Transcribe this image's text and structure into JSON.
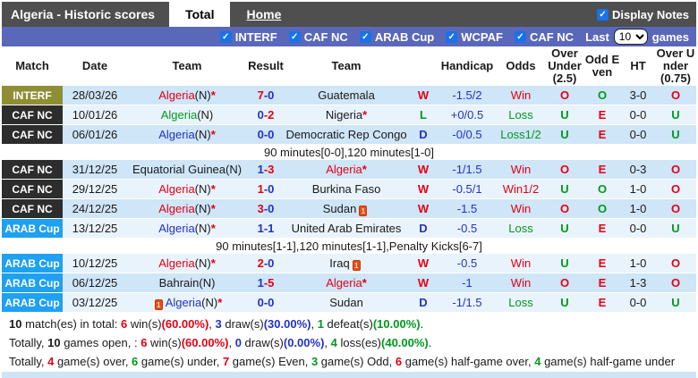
{
  "header": {
    "title": "Algeria - Historic scores",
    "tabs": [
      {
        "label": "Total",
        "active": true
      },
      {
        "label": "Home",
        "active": false
      }
    ],
    "display_notes": {
      "label": "Display Notes",
      "checked": true,
      "check_icon": "✓"
    }
  },
  "filters": {
    "items": [
      "INTERF",
      "CAF NC",
      "ARAB Cup",
      "WCPAF",
      "CAF NC"
    ],
    "check_icon": "✓",
    "last_label": "Last",
    "games_label": "games",
    "selected_games": "10",
    "options": [
      "10"
    ]
  },
  "colors": {
    "red": "#e60012",
    "green": "#009a1d",
    "blue": "#2232c8",
    "row_dark": "#cfe5f8",
    "row_light": "#e9f3fc",
    "topbar": "#4f4f4f",
    "filterbar": "#5a68ba",
    "checkbox_blue": "#1a72e8",
    "bottom_strip": "#cfe4f7"
  },
  "table": {
    "columns": [
      "Match",
      "Date",
      "Team",
      "Result",
      "Team",
      "",
      "Handicap",
      "Odds",
      "Over Under (2.5)",
      "Odd Even",
      "HT",
      "Over Under (0.75)"
    ],
    "badge_colors": {
      "INTERF": "#8e8f35",
      "CAF NC": "#2d2d2d",
      "ARAB Cup": "#1fa0f0"
    },
    "rows": [
      {
        "type": "match",
        "league": "INTERF",
        "date": "28/03/26",
        "team1": {
          "name": "Algeria",
          "suffix": "(N)",
          "star": true,
          "color": "red",
          "card": "none"
        },
        "score": {
          "l": "7",
          "r": "0",
          "lc": "red",
          "rc": "blue"
        },
        "team2": {
          "name": "Guatemala",
          "suffix": "",
          "star": false,
          "color": "black",
          "card": "none"
        },
        "wld": {
          "t": "W",
          "c": "red"
        },
        "handicap": "-1.5/2",
        "odds": {
          "t": "Win",
          "c": "red"
        },
        "ou25": {
          "t": "O",
          "c": "red"
        },
        "oddeven": {
          "t": "O",
          "c": "green"
        },
        "ht": "3-0",
        "ou075": {
          "t": "O",
          "c": "red"
        }
      },
      {
        "type": "match",
        "league": "CAF NC",
        "date": "10/01/26",
        "team1": {
          "name": "Algeria",
          "suffix": "(N)",
          "star": false,
          "color": "green",
          "card": "none"
        },
        "score": {
          "l": "0",
          "r": "2",
          "lc": "blue",
          "rc": "red"
        },
        "team2": {
          "name": "Nigeria",
          "suffix": "",
          "star": true,
          "color": "black",
          "card": "none"
        },
        "wld": {
          "t": "L",
          "c": "green"
        },
        "handicap": "+0/0.5",
        "odds": {
          "t": "Loss",
          "c": "green"
        },
        "ou25": {
          "t": "U",
          "c": "green"
        },
        "oddeven": {
          "t": "E",
          "c": "red"
        },
        "ht": "0-0",
        "ou075": {
          "t": "U",
          "c": "green"
        }
      },
      {
        "type": "match",
        "league": "CAF NC",
        "date": "06/01/26",
        "team1": {
          "name": "Algeria",
          "suffix": "(N)",
          "star": true,
          "color": "blue",
          "card": "none"
        },
        "score": {
          "l": "0",
          "r": "0",
          "lc": "blue",
          "rc": "blue"
        },
        "team2": {
          "name": "Democratic Rep Congo",
          "suffix": "",
          "star": false,
          "color": "black",
          "card": "none"
        },
        "wld": {
          "t": "D",
          "c": "blue"
        },
        "handicap": "-0/0.5",
        "odds": {
          "t": "Loss1/2",
          "c": "green"
        },
        "ou25": {
          "t": "U",
          "c": "green"
        },
        "oddeven": {
          "t": "E",
          "c": "red"
        },
        "ht": "0-0",
        "ou075": {
          "t": "U",
          "c": "green"
        }
      },
      {
        "type": "note",
        "text": "90 minutes[0-0],120 minutes[1-0]"
      },
      {
        "type": "match",
        "league": "CAF NC",
        "date": "31/12/25",
        "team1": {
          "name": "Equatorial Guinea",
          "suffix": "(N)",
          "star": false,
          "color": "black",
          "card": "none"
        },
        "score": {
          "l": "1",
          "r": "3",
          "lc": "blue",
          "rc": "red"
        },
        "team2": {
          "name": "Algeria",
          "suffix": "",
          "star": true,
          "color": "red",
          "card": "none"
        },
        "wld": {
          "t": "W",
          "c": "red"
        },
        "handicap": "-1/1.5",
        "odds": {
          "t": "Win",
          "c": "red"
        },
        "ou25": {
          "t": "O",
          "c": "red"
        },
        "oddeven": {
          "t": "E",
          "c": "red"
        },
        "ht": "0-3",
        "ou075": {
          "t": "O",
          "c": "red"
        }
      },
      {
        "type": "match",
        "league": "CAF NC",
        "date": "29/12/25",
        "team1": {
          "name": "Algeria",
          "suffix": "(N)",
          "star": true,
          "color": "red",
          "card": "none"
        },
        "score": {
          "l": "1",
          "r": "0",
          "lc": "red",
          "rc": "blue"
        },
        "team2": {
          "name": "Burkina Faso",
          "suffix": "",
          "star": false,
          "color": "black",
          "card": "none"
        },
        "wld": {
          "t": "W",
          "c": "red"
        },
        "handicap": "-0.5/1",
        "odds": {
          "t": "Win1/2",
          "c": "red"
        },
        "ou25": {
          "t": "U",
          "c": "green"
        },
        "oddeven": {
          "t": "O",
          "c": "green"
        },
        "ht": "1-0",
        "ou075": {
          "t": "O",
          "c": "red"
        }
      },
      {
        "type": "match",
        "league": "CAF NC",
        "date": "24/12/25",
        "team1": {
          "name": "Algeria",
          "suffix": "(N)",
          "star": true,
          "color": "red",
          "card": "none"
        },
        "score": {
          "l": "3",
          "r": "0",
          "lc": "red",
          "rc": "blue"
        },
        "team2": {
          "name": "Sudan",
          "suffix": "",
          "star": false,
          "color": "black",
          "card": "after"
        },
        "wld": {
          "t": "W",
          "c": "red"
        },
        "handicap": "-1.5",
        "odds": {
          "t": "Win",
          "c": "red"
        },
        "ou25": {
          "t": "O",
          "c": "red"
        },
        "oddeven": {
          "t": "O",
          "c": "green"
        },
        "ht": "1-0",
        "ou075": {
          "t": "O",
          "c": "red"
        }
      },
      {
        "type": "match",
        "league": "ARAB Cup",
        "date": "13/12/25",
        "team1": {
          "name": "Algeria",
          "suffix": "(N)",
          "star": true,
          "color": "blue",
          "card": "none"
        },
        "score": {
          "l": "1",
          "r": "1",
          "lc": "blue",
          "rc": "blue"
        },
        "team2": {
          "name": "United Arab Emirates",
          "suffix": "",
          "star": false,
          "color": "black",
          "card": "none"
        },
        "wld": {
          "t": "D",
          "c": "blue"
        },
        "handicap": "-0.5",
        "odds": {
          "t": "Loss",
          "c": "green"
        },
        "ou25": {
          "t": "U",
          "c": "green"
        },
        "oddeven": {
          "t": "E",
          "c": "red"
        },
        "ht": "0-0",
        "ou075": {
          "t": "U",
          "c": "green"
        }
      },
      {
        "type": "note",
        "text": "90 minutes[1-1],120 minutes[1-1],Penalty Kicks[6-7]"
      },
      {
        "type": "match",
        "league": "ARAB Cup",
        "date": "10/12/25",
        "team1": {
          "name": "Algeria",
          "suffix": "(N)",
          "star": true,
          "color": "red",
          "card": "none"
        },
        "score": {
          "l": "2",
          "r": "0",
          "lc": "red",
          "rc": "blue"
        },
        "team2": {
          "name": "Iraq",
          "suffix": "",
          "star": false,
          "color": "black",
          "card": "after"
        },
        "wld": {
          "t": "W",
          "c": "red"
        },
        "handicap": "-0.5",
        "odds": {
          "t": "Win",
          "c": "red"
        },
        "ou25": {
          "t": "U",
          "c": "green"
        },
        "oddeven": {
          "t": "E",
          "c": "red"
        },
        "ht": "1-0",
        "ou075": {
          "t": "O",
          "c": "red"
        }
      },
      {
        "type": "match",
        "league": "ARAB Cup",
        "date": "06/12/25",
        "team1": {
          "name": "Bahrain",
          "suffix": "(N)",
          "star": false,
          "color": "black",
          "card": "none"
        },
        "score": {
          "l": "1",
          "r": "5",
          "lc": "blue",
          "rc": "red"
        },
        "team2": {
          "name": "Algeria",
          "suffix": "",
          "star": true,
          "color": "red",
          "card": "none"
        },
        "wld": {
          "t": "W",
          "c": "red"
        },
        "handicap": "-1",
        "odds": {
          "t": "Win",
          "c": "red"
        },
        "ou25": {
          "t": "O",
          "c": "red"
        },
        "oddeven": {
          "t": "E",
          "c": "red"
        },
        "ht": "1-3",
        "ou075": {
          "t": "O",
          "c": "red"
        }
      },
      {
        "type": "match",
        "league": "ARAB Cup",
        "date": "03/12/25",
        "team1": {
          "name": "Algeria",
          "suffix": "(N)",
          "star": true,
          "color": "blue",
          "card": "before"
        },
        "score": {
          "l": "0",
          "r": "0",
          "lc": "blue",
          "rc": "blue"
        },
        "team2": {
          "name": "Sudan",
          "suffix": "",
          "star": false,
          "color": "black",
          "card": "none"
        },
        "wld": {
          "t": "D",
          "c": "blue"
        },
        "handicap": "-1/1.5",
        "odds": {
          "t": "Loss",
          "c": "green"
        },
        "ou25": {
          "t": "U",
          "c": "green"
        },
        "oddeven": {
          "t": "E",
          "c": "red"
        },
        "ht": "0-0",
        "ou075": {
          "t": "U",
          "c": "green"
        }
      }
    ]
  },
  "footer": {
    "lines": [
      [
        {
          "t": "10",
          "b": 1
        },
        {
          "t": " match(es) in total: "
        },
        {
          "t": "6",
          "c": "red",
          "b": 1
        },
        {
          "t": " win(s)"
        },
        {
          "t": "(60.00%)",
          "c": "red",
          "b": 1
        },
        {
          "t": ", "
        },
        {
          "t": "3",
          "c": "blue",
          "b": 1
        },
        {
          "t": " draw(s)"
        },
        {
          "t": "(30.00%)",
          "c": "blue",
          "b": 1
        },
        {
          "t": ", "
        },
        {
          "t": "1",
          "c": "green",
          "b": 1
        },
        {
          "t": " defeat(s)"
        },
        {
          "t": "(10.00%)",
          "c": "green",
          "b": 1
        },
        {
          "t": "."
        }
      ],
      [
        {
          "t": "Totally, "
        },
        {
          "t": "10",
          "b": 1
        },
        {
          "t": " games open, : "
        },
        {
          "t": "6",
          "c": "red",
          "b": 1
        },
        {
          "t": " win(s)"
        },
        {
          "t": "(60.00%)",
          "c": "red",
          "b": 1
        },
        {
          "t": ", "
        },
        {
          "t": "0",
          "c": "blue",
          "b": 1
        },
        {
          "t": " draw(s)"
        },
        {
          "t": "(0.00%)",
          "c": "blue",
          "b": 1
        },
        {
          "t": ", "
        },
        {
          "t": "4",
          "c": "green",
          "b": 1
        },
        {
          "t": " loss(es)"
        },
        {
          "t": "(40.00%)",
          "c": "green",
          "b": 1
        },
        {
          "t": "."
        }
      ],
      [
        {
          "t": "Totally, "
        },
        {
          "t": "4",
          "c": "red",
          "b": 1
        },
        {
          "t": " game(s) over, "
        },
        {
          "t": "6",
          "c": "green",
          "b": 1
        },
        {
          "t": " game(s) under, "
        },
        {
          "t": "7",
          "c": "red",
          "b": 1
        },
        {
          "t": " game(s) Even, "
        },
        {
          "t": "3",
          "c": "green",
          "b": 1
        },
        {
          "t": " game(s) Odd, "
        },
        {
          "t": "6",
          "c": "red",
          "b": 1
        },
        {
          "t": " game(s) half-game over, "
        },
        {
          "t": "4",
          "c": "green",
          "b": 1
        },
        {
          "t": " game(s) half-game under"
        }
      ]
    ]
  }
}
